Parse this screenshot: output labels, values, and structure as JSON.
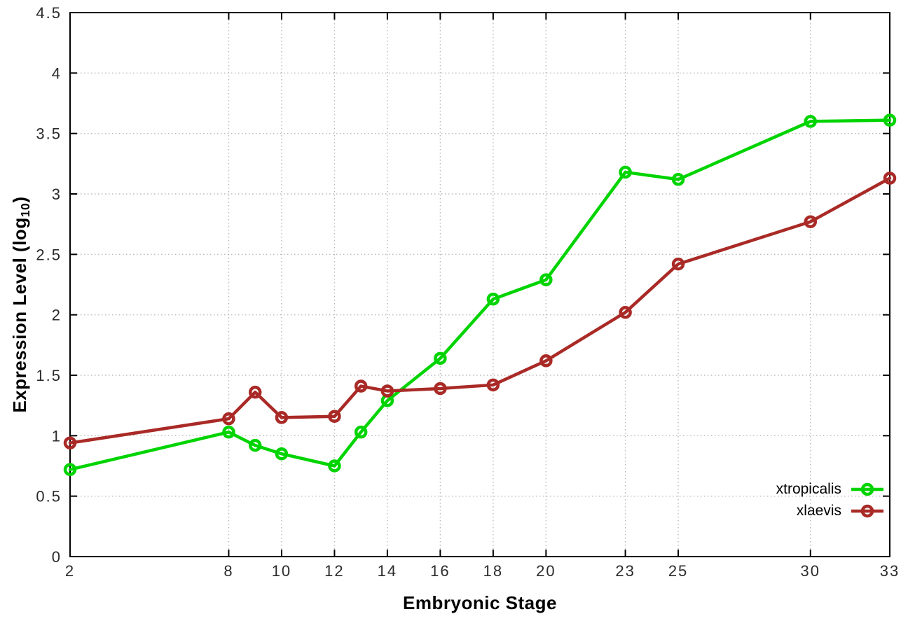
{
  "chart_data": {
    "type": "line",
    "xlabel": "Embryonic Stage",
    "ylabel": "Expression Level (log10)",
    "ylabel_parts": {
      "main": "Expression Level (log",
      "sub": "10",
      "end": ")"
    },
    "x": [
      2,
      8,
      9,
      10,
      12,
      13,
      14,
      16,
      18,
      20,
      23,
      25,
      30,
      33
    ],
    "x_ticks": [
      2,
      8,
      10,
      12,
      14,
      16,
      18,
      20,
      23,
      25,
      30,
      33
    ],
    "y_ticks": [
      0,
      0.5,
      1,
      1.5,
      2,
      2.5,
      3,
      3.5,
      4,
      4.5
    ],
    "xlim": [
      2,
      33
    ],
    "ylim": [
      0,
      4.5
    ],
    "grid": true,
    "grid_style": "dotted",
    "legend_position": "inside-bottom-right",
    "marker": "open-circle",
    "background_color": "#ffffff",
    "grid_color": "#b9b9b9",
    "axis_color": "#000000",
    "series": [
      {
        "name": "xtropicalis",
        "color": "#00d400",
        "values": [
          0.72,
          1.03,
          0.92,
          0.85,
          0.75,
          1.03,
          1.29,
          1.64,
          2.13,
          2.29,
          3.18,
          3.12,
          3.6,
          3.61
        ]
      },
      {
        "name": "xlaevis",
        "color": "#a92a26",
        "values": [
          0.94,
          1.14,
          1.36,
          1.15,
          1.16,
          1.41,
          1.37,
          1.39,
          1.42,
          1.62,
          2.02,
          2.42,
          2.77,
          3.13
        ]
      }
    ]
  }
}
